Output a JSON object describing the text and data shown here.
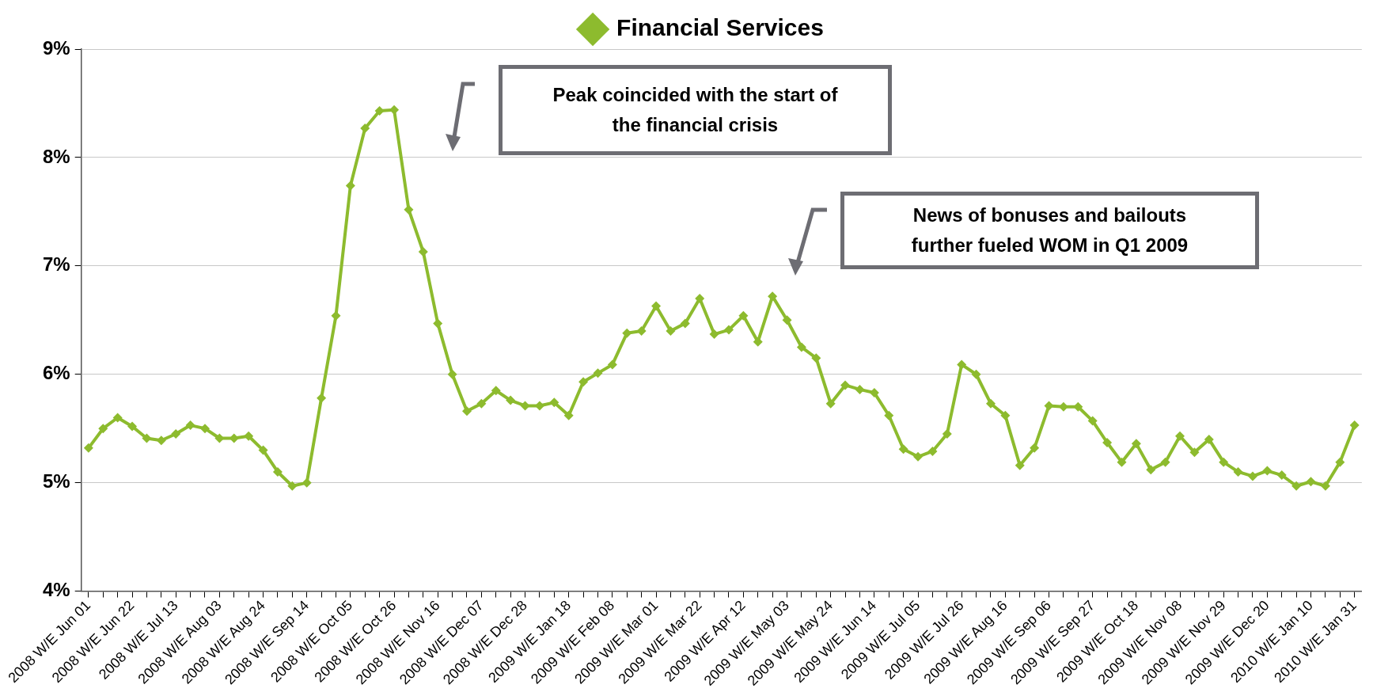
{
  "chart_data": {
    "type": "line",
    "categories": [
      "2008 W/E Jun 01",
      null,
      null,
      "2008 W/E Jun 22",
      null,
      null,
      "2008 W/E Jul 13",
      null,
      null,
      "2008 W/E Aug 03",
      null,
      null,
      "2008 W/E Aug 24",
      null,
      null,
      "2008 W/E Sep 14",
      null,
      null,
      "2008 W/E Oct 05",
      null,
      null,
      "2008 W/E Oct 26",
      null,
      null,
      "2008 W/E Nov 16",
      null,
      null,
      "2008 W/E Dec 07",
      null,
      null,
      "2008 W/E Dec 28",
      null,
      null,
      "2009 W/E Jan 18",
      null,
      null,
      "2009 W/E Feb 08",
      null,
      null,
      "2009 W/E Mar 01",
      null,
      null,
      "2009 W/E Mar 22",
      null,
      null,
      "2009 W/E Apr 12",
      null,
      null,
      "2009 W/E May 03",
      null,
      null,
      "2009 W/E May 24",
      null,
      null,
      "2009 W/E Jun 14",
      null,
      null,
      "2009 W/E Jul 05",
      null,
      null,
      "2009 W/E Jul 26",
      null,
      null,
      "2009 W/E Aug 16",
      null,
      null,
      "2009 W/E Sep 06",
      null,
      null,
      "2009 W/E Sep 27",
      null,
      null,
      "2009 W/E Oct 18",
      null,
      null,
      "2009 W/E Nov 08",
      null,
      null,
      "2009 W/E Nov 29",
      null,
      null,
      "2009 W/E Dec 20",
      null,
      null,
      "2010 W/E Jan 10",
      null,
      null,
      "2010 W/E Jan 31"
    ],
    "series": [
      {
        "name": "Financial Services",
        "color": "#8dbb2e",
        "values": [
          5.32,
          5.5,
          5.6,
          5.52,
          5.41,
          5.39,
          5.45,
          5.53,
          5.5,
          5.41,
          5.41,
          5.43,
          5.3,
          5.1,
          4.97,
          5.0,
          5.78,
          6.54,
          7.74,
          8.27,
          8.43,
          8.44,
          7.52,
          7.13,
          6.47,
          6.0,
          5.66,
          5.73,
          5.85,
          5.76,
          5.71,
          5.71,
          5.74,
          5.62,
          5.93,
          6.01,
          6.09,
          6.38,
          6.4,
          6.63,
          6.4,
          6.47,
          6.7,
          6.37,
          6.41,
          6.54,
          6.3,
          6.72,
          6.5,
          6.25,
          6.15,
          5.73,
          5.9,
          5.86,
          5.83,
          5.62,
          5.31,
          5.24,
          5.29,
          5.45,
          6.09,
          6.0,
          5.73,
          5.62,
          5.16,
          5.32,
          5.71,
          5.7,
          5.7,
          5.57,
          5.37,
          5.19,
          5.36,
          5.12,
          5.19,
          5.43,
          5.28,
          5.4,
          5.19,
          5.1,
          5.06,
          5.11,
          5.07,
          4.97,
          5.01,
          4.97,
          5.19,
          5.53
        ]
      }
    ],
    "ylim": [
      4,
      9
    ],
    "yticks": [
      {
        "value": 4,
        "label": "4%"
      },
      {
        "value": 5,
        "label": "5%"
      },
      {
        "value": 6,
        "label": "6%"
      },
      {
        "value": 7,
        "label": "7%"
      },
      {
        "value": 8,
        "label": "8%"
      },
      {
        "value": 9,
        "label": "9%"
      }
    ],
    "grid": "y",
    "legend": "top",
    "marker": "diamond",
    "line_style": "solid",
    "annotations": [
      "Peak coincided with the start of the financial crisis",
      "News of bonuses and bailouts further fueled WOM in Q1 2009"
    ]
  }
}
